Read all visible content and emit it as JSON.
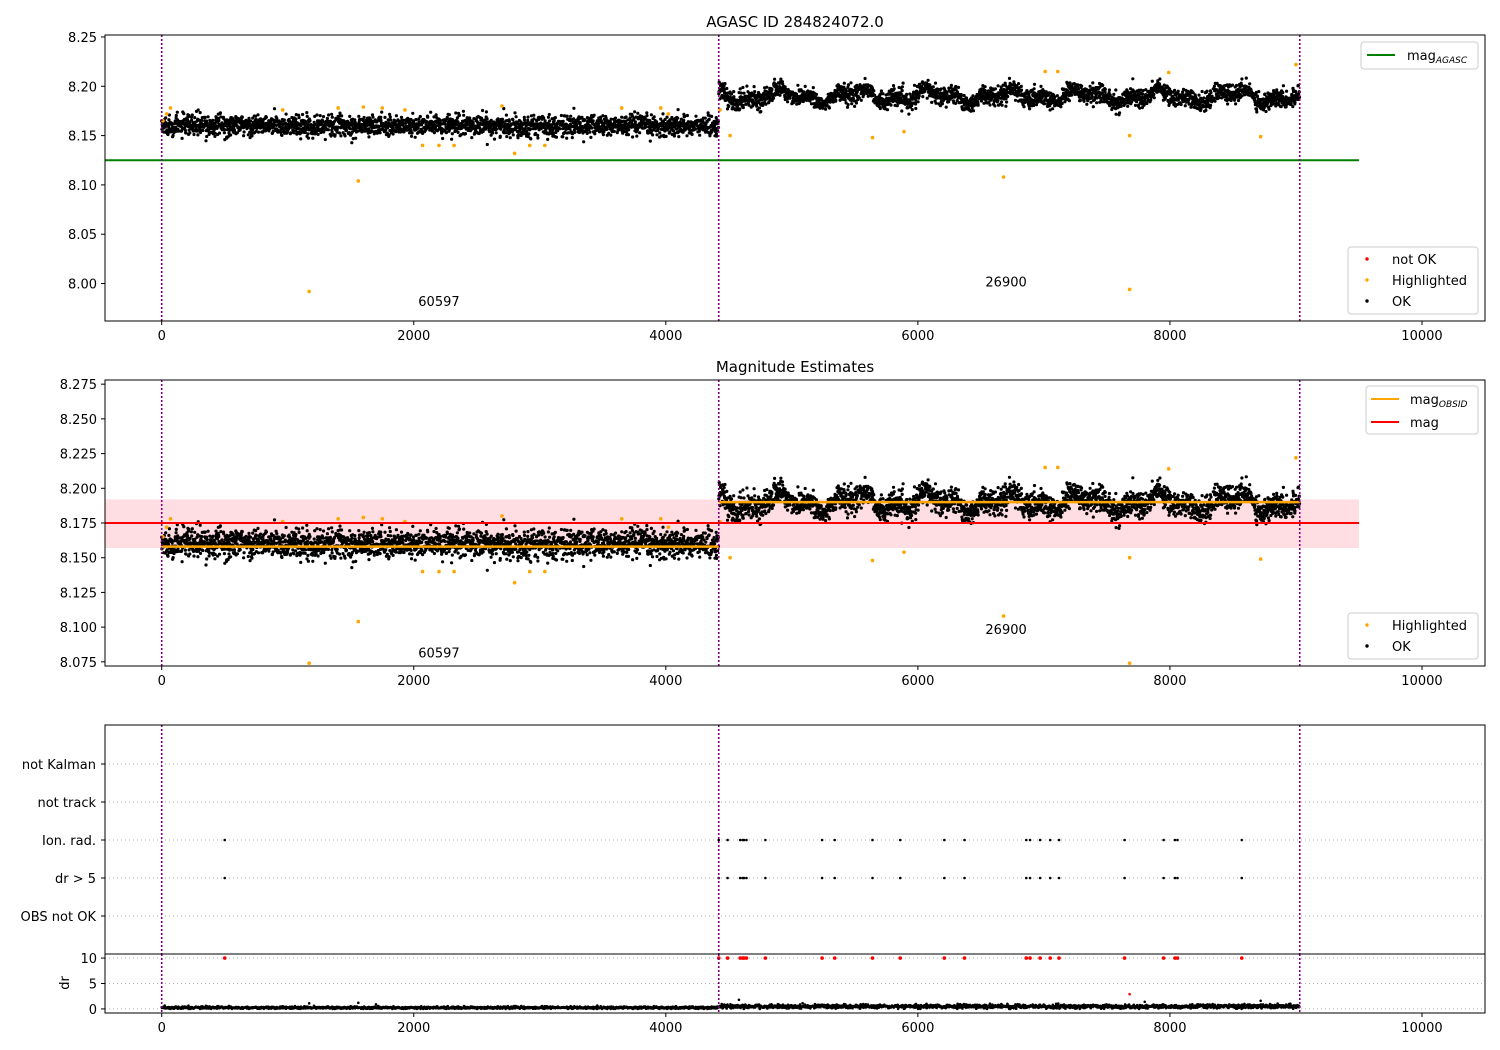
{
  "colors": {
    "ok": "#000000",
    "highlighted": "#ffa500",
    "not_ok": "#ff0000",
    "mag_agasc": "#008000",
    "mag_obsid": "#ffa500",
    "mag": "#ff0000",
    "mag_band": "#ffb6c1",
    "obsid_boundary": "#800080",
    "grid": "#b0b0b0"
  },
  "chart_data": [
    {
      "type": "scatter",
      "title": "AGASC ID 284824072.0",
      "xlim": [
        -450,
        10500
      ],
      "ylim": [
        7.962,
        8.252
      ],
      "x_ticks": [
        0,
        2000,
        4000,
        6000,
        8000,
        10000
      ],
      "x_tick_labels": [
        "0",
        "2000",
        "4000",
        "6000",
        "8000",
        "10000"
      ],
      "y_ticks": [
        8.0,
        8.05,
        8.1,
        8.15,
        8.2,
        8.25
      ],
      "y_tick_labels": [
        "8.00",
        "8.05",
        "8.10",
        "8.15",
        "8.20",
        "8.25"
      ],
      "obsid_boundaries": [
        0,
        4420,
        9030
      ],
      "obsid_labels": [
        {
          "text": "60597",
          "x": 2200,
          "y": 7.977
        },
        {
          "text": "26900",
          "x": 6700,
          "y": 7.997
        }
      ],
      "hlines": [
        {
          "name": "mag",
          "sub": "AGASC",
          "y": 8.125,
          "x_range": [
            -450,
            9500
          ],
          "color_key": "mag_agasc"
        }
      ],
      "series": [
        {
          "name": "not OK",
          "points": []
        },
        {
          "name": "Highlighted",
          "points": [
            [
              10,
              8.165
            ],
            [
              40,
              8.172
            ],
            [
              70,
              8.178
            ],
            [
              960,
              8.176
            ],
            [
              1170,
              7.992
            ],
            [
              1400,
              8.178
            ],
            [
              1560,
              8.104
            ],
            [
              1600,
              8.179
            ],
            [
              1750,
              8.178
            ],
            [
              1930,
              8.176
            ],
            [
              2070,
              8.14
            ],
            [
              2200,
              8.14
            ],
            [
              2320,
              8.14
            ],
            [
              2700,
              8.18
            ],
            [
              2800,
              8.132
            ],
            [
              2920,
              8.14
            ],
            [
              3040,
              8.14
            ],
            [
              3650,
              8.178
            ],
            [
              3960,
              8.178
            ],
            [
              4020,
              8.172
            ],
            [
              4430,
              8.176
            ],
            [
              4510,
              8.15
            ],
            [
              5640,
              8.148
            ],
            [
              5890,
              8.154
            ],
            [
              6680,
              8.108
            ],
            [
              7010,
              8.215
            ],
            [
              7110,
              8.215
            ],
            [
              7680,
              8.15
            ],
            [
              7680,
              7.994
            ],
            [
              7990,
              8.214
            ],
            [
              8720,
              8.149
            ],
            [
              9000,
              8.222
            ]
          ]
        },
        {
          "name": "OK",
          "segments": [
            {
              "x0": 0,
              "x1": 4420,
              "n": 2400,
              "mean": 8.16,
              "sd": 0.0052,
              "wave": 0.0
            },
            {
              "x0": 4420,
              "x1": 9030,
              "n": 2600,
              "mean": 8.19,
              "sd": 0.0045,
              "wave": 0.0085
            }
          ]
        }
      ],
      "legend_upper": [
        {
          "label": "mag",
          "sub": "AGASC",
          "color_key": "mag_agasc"
        }
      ],
      "legend_upper_loc": "upper right",
      "legend_lower": [
        {
          "label": "not OK",
          "color_key": "not_ok"
        },
        {
          "label": "Highlighted",
          "color_key": "highlighted"
        },
        {
          "label": "OK",
          "color_key": "ok"
        }
      ],
      "legend_lower_loc": "lower right"
    },
    {
      "type": "scatter",
      "title": "Magnitude Estimates",
      "xlim": [
        -450,
        10500
      ],
      "ylim": [
        8.072,
        8.278
      ],
      "x_ticks": [
        0,
        2000,
        4000,
        6000,
        8000,
        10000
      ],
      "x_tick_labels": [
        "0",
        "2000",
        "4000",
        "6000",
        "8000",
        "10000"
      ],
      "y_ticks": [
        8.075,
        8.1,
        8.125,
        8.15,
        8.175,
        8.2,
        8.225,
        8.25,
        8.275
      ],
      "y_tick_labels": [
        "8.075",
        "8.100",
        "8.125",
        "8.150",
        "8.175",
        "8.200",
        "8.225",
        "8.250",
        "8.275"
      ],
      "obsid_boundaries": [
        0,
        4420,
        9030
      ],
      "obsid_labels": [
        {
          "text": "60597",
          "x": 2200,
          "y": 8.078
        },
        {
          "text": "26900",
          "x": 6700,
          "y": 8.095
        }
      ],
      "band": {
        "y0": 8.157,
        "y1": 8.192,
        "x_range": [
          -450,
          9500
        ],
        "color_key": "mag_band"
      },
      "hlines": [
        {
          "name": "mag",
          "y": 8.175,
          "x_range": [
            -450,
            9500
          ],
          "color_key": "mag"
        }
      ],
      "obsid_mags": [
        {
          "x0": 0,
          "x1": 4420,
          "y": 8.158
        },
        {
          "x0": 4420,
          "x1": 9030,
          "y": 8.19
        }
      ],
      "series": [
        {
          "name": "Highlighted",
          "points": [
            [
              10,
              8.165
            ],
            [
              40,
              8.172
            ],
            [
              70,
              8.178
            ],
            [
              960,
              8.176
            ],
            [
              1170,
              8.074
            ],
            [
              1400,
              8.178
            ],
            [
              1560,
              8.104
            ],
            [
              1600,
              8.179
            ],
            [
              1750,
              8.178
            ],
            [
              1930,
              8.176
            ],
            [
              2070,
              8.14
            ],
            [
              2200,
              8.14
            ],
            [
              2320,
              8.14
            ],
            [
              2700,
              8.18
            ],
            [
              2800,
              8.132
            ],
            [
              2920,
              8.14
            ],
            [
              3040,
              8.14
            ],
            [
              3650,
              8.178
            ],
            [
              3960,
              8.178
            ],
            [
              4020,
              8.172
            ],
            [
              4430,
              8.176
            ],
            [
              4510,
              8.15
            ],
            [
              5640,
              8.148
            ],
            [
              5890,
              8.154
            ],
            [
              6680,
              8.108
            ],
            [
              7010,
              8.215
            ],
            [
              7110,
              8.215
            ],
            [
              7680,
              8.15
            ],
            [
              7680,
              8.074
            ],
            [
              7990,
              8.214
            ],
            [
              8720,
              8.149
            ],
            [
              9000,
              8.222
            ]
          ]
        },
        {
          "name": "OK",
          "segments": [
            {
              "x0": 0,
              "x1": 4420,
              "n": 2400,
              "mean": 8.16,
              "sd": 0.0052,
              "wave": 0.0
            },
            {
              "x0": 4420,
              "x1": 9030,
              "n": 2600,
              "mean": 8.19,
              "sd": 0.0045,
              "wave": 0.0085
            }
          ]
        }
      ],
      "legend_upper": [
        {
          "label": "mag",
          "sub": "OBSID",
          "color_key": "mag_obsid"
        },
        {
          "label": "mag",
          "color_key": "mag"
        }
      ],
      "legend_upper_loc": "upper right",
      "legend_lower": [
        {
          "label": "Highlighted",
          "color_key": "highlighted"
        },
        {
          "label": "OK",
          "color_key": "ok"
        }
      ],
      "legend_lower_loc": "lower right"
    },
    {
      "type": "scatter",
      "title": "",
      "xlim": [
        -450,
        10500
      ],
      "categories": [
        "not Kalman",
        "not track",
        "Ion. rad.",
        "dr > 5",
        "OBS not OK"
      ],
      "obsid_boundaries": [
        0,
        4420,
        9030
      ],
      "flags": {
        "Ion. rad.": [
          500,
          4420,
          4490,
          4590,
          4610,
          4620,
          4640,
          4790,
          5240,
          5340,
          5640,
          5860,
          6210,
          6370,
          6860,
          6890,
          6970,
          7050,
          7120,
          7640,
          7950,
          8040,
          8060,
          8570
        ],
        "dr > 5": [
          500,
          4420,
          4490,
          4590,
          4610,
          4620,
          4640,
          4790,
          5240,
          5340,
          5640,
          5860,
          6210,
          6370,
          6860,
          6890,
          6970,
          7050,
          7120,
          7640,
          7950,
          8040,
          8060,
          8570
        ]
      }
    },
    {
      "type": "scatter",
      "title": "",
      "ylabel": "dr",
      "xlim": [
        -450,
        10500
      ],
      "ylim": [
        -0.8,
        10.8
      ],
      "x_ticks": [
        0,
        2000,
        4000,
        6000,
        8000,
        10000
      ],
      "x_tick_labels": [
        "0",
        "2000",
        "4000",
        "6000",
        "8000",
        "10000"
      ],
      "y_ticks": [
        0,
        5,
        10
      ],
      "y_tick_labels": [
        "0",
        "5",
        "10"
      ],
      "obsid_boundaries": [
        0,
        4420,
        9030
      ],
      "clipped_at": 10,
      "clipped_x": [
        500,
        4420,
        4490,
        4590,
        4610,
        4620,
        4640,
        4790,
        5240,
        5340,
        5640,
        5860,
        6210,
        6370,
        6860,
        6890,
        6970,
        7050,
        7120,
        7640,
        7950,
        8040,
        8060,
        8570
      ],
      "outliers": [
        [
          1170,
          1.1
        ],
        [
          1560,
          1.2
        ],
        [
          1700,
          0.9
        ],
        [
          4580,
          1.8
        ],
        [
          7680,
          2.9
        ],
        [
          7800,
          1.4
        ],
        [
          8720,
          1.6
        ]
      ],
      "series": [
        {
          "name": "dr",
          "segments": [
            {
              "x0": 0,
              "x1": 4420,
              "n": 1500,
              "mean": 0.25,
              "sd": 0.12,
              "wave": 0.0
            },
            {
              "x0": 4420,
              "x1": 9030,
              "n": 1600,
              "mean": 0.5,
              "sd": 0.2,
              "wave": 0.0
            }
          ]
        }
      ]
    }
  ]
}
